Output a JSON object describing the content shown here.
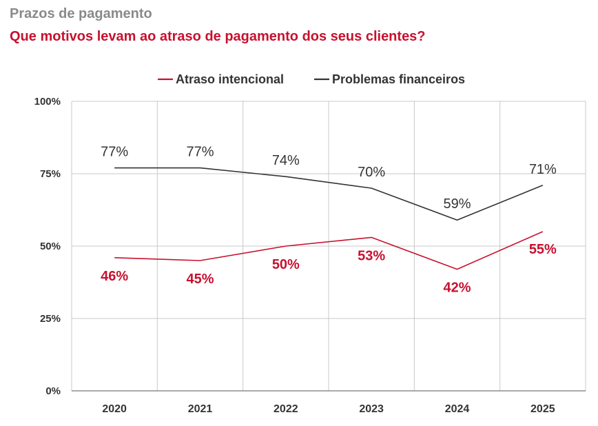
{
  "chart_data": {
    "type": "line",
    "kicker": "Prazos de pagamento",
    "title": "Que motivos levam ao atraso de pagamento dos seus clientes?",
    "categories": [
      "2020",
      "2021",
      "2022",
      "2023",
      "2024",
      "2025"
    ],
    "ylim": [
      0,
      100
    ],
    "yticks": [
      0,
      25,
      50,
      75,
      100
    ],
    "ytick_labels": [
      "0%",
      "25%",
      "50%",
      "75%",
      "100%"
    ],
    "grid": true,
    "legend_position": "top-center",
    "series": [
      {
        "name": "Atraso intencional",
        "color": "#c8102e",
        "values": [
          46,
          45,
          50,
          53,
          42,
          55
        ],
        "labels": [
          "46%",
          "45%",
          "50%",
          "53%",
          "42%",
          "55%"
        ]
      },
      {
        "name": "Problemas financeiros",
        "color": "#333333",
        "values": [
          77,
          77,
          74,
          70,
          59,
          71
        ],
        "labels": [
          "77%",
          "77%",
          "74%",
          "70%",
          "59%",
          "71%"
        ]
      }
    ]
  }
}
